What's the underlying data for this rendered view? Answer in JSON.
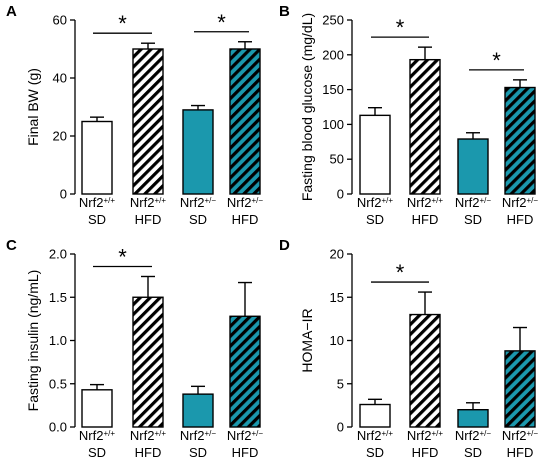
{
  "colors": {
    "white_fill": "#ffffff",
    "teal_fill": "#1b98ad",
    "hatch_white_bg": "#ffffff",
    "hatch_teal_bg": "#1b98ad",
    "stroke": "#000000"
  },
  "groups": [
    {
      "genotype": "Nrf2",
      "sup": "+/+",
      "diet": "SD",
      "style": "white"
    },
    {
      "genotype": "Nrf2",
      "sup": "+/+",
      "diet": "HFD",
      "style": "hatch-white"
    },
    {
      "genotype": "Nrf2",
      "sup": "+/−",
      "diet": "SD",
      "style": "teal"
    },
    {
      "genotype": "Nrf2",
      "sup": "+/−",
      "diet": "HFD",
      "style": "hatch-teal"
    }
  ],
  "chart_data": [
    {
      "panel": "A",
      "type": "bar",
      "ylabel": "Final BW (g)",
      "ylim": [
        0,
        60
      ],
      "yticks": [
        "0",
        "20",
        "40",
        "60"
      ],
      "values": [
        25,
        50,
        29,
        50
      ],
      "errors": [
        1.5,
        2,
        1.5,
        2.5
      ],
      "significance": [
        {
          "pair": [
            0,
            1
          ],
          "label": "*"
        },
        {
          "pair": [
            2,
            3
          ],
          "label": "*"
        }
      ]
    },
    {
      "panel": "B",
      "type": "bar",
      "ylabel": "Fasting blood glucose (mg/dL)",
      "ylim": [
        0,
        250
      ],
      "yticks": [
        "0",
        "50",
        "100",
        "150",
        "200",
        "250"
      ],
      "values": [
        113,
        193,
        79,
        153
      ],
      "errors": [
        11,
        18,
        9,
        11
      ],
      "significance": [
        {
          "pair": [
            0,
            1
          ],
          "label": "*"
        },
        {
          "pair": [
            2,
            3
          ],
          "label": "*"
        }
      ]
    },
    {
      "panel": "C",
      "type": "bar",
      "ylabel": "Fasting insulin (ng/mL)",
      "ylim": [
        0,
        2.0
      ],
      "yticks": [
        "0.0",
        "0.5",
        "1.0",
        "1.5",
        "2.0"
      ],
      "values": [
        0.43,
        1.5,
        0.38,
        1.28
      ],
      "errors": [
        0.06,
        0.24,
        0.09,
        0.39
      ],
      "significance": [
        {
          "pair": [
            0,
            1
          ],
          "label": "*"
        }
      ]
    },
    {
      "panel": "D",
      "type": "bar",
      "ylabel": "HOMA−IR",
      "ylim": [
        0,
        20
      ],
      "yticks": [
        "0",
        "5",
        "10",
        "15",
        "20"
      ],
      "values": [
        2.6,
        13,
        2,
        8.8
      ],
      "errors": [
        0.6,
        2.6,
        0.8,
        2.7
      ],
      "significance": [
        {
          "pair": [
            0,
            1
          ],
          "label": "*"
        }
      ]
    }
  ]
}
